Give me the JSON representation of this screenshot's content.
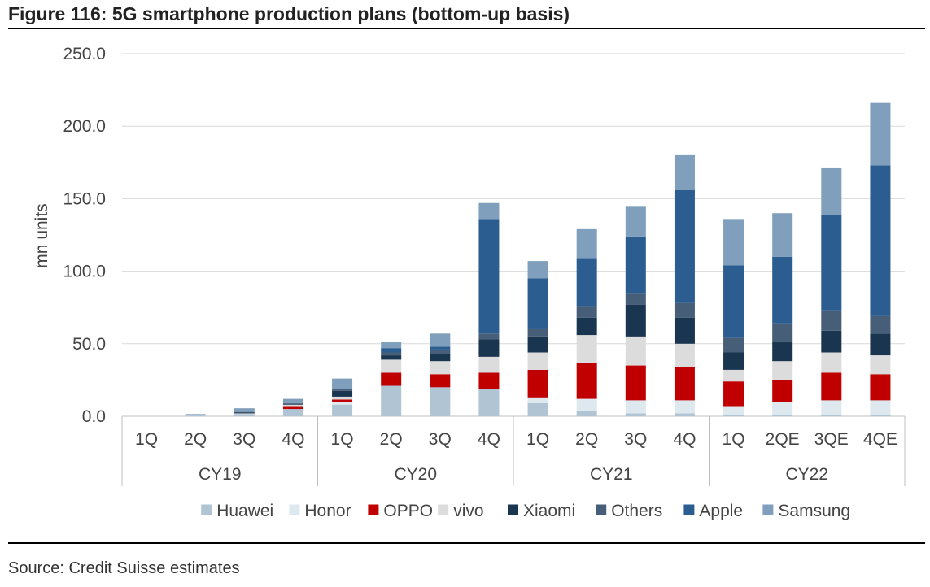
{
  "title": "Figure 116: 5G smartphone production plans (bottom-up basis)",
  "source": "Source: Credit Suisse estimates",
  "chart_data": {
    "type": "bar",
    "stacked": true,
    "ylabel": "mn units",
    "ylim": [
      0,
      250
    ],
    "yticks": [
      "0.0",
      "50.0",
      "100.0",
      "150.0",
      "200.0",
      "250.0"
    ],
    "grid": true,
    "legend_position": "bottom",
    "categories": [
      "1Q",
      "2Q",
      "3Q",
      "4Q",
      "1Q",
      "2Q",
      "3Q",
      "4Q",
      "1Q",
      "2Q",
      "3Q",
      "4Q",
      "1Q",
      "2QE",
      "3QE",
      "4QE"
    ],
    "groups": [
      {
        "label": "CY19",
        "count": 4
      },
      {
        "label": "CY20",
        "count": 4
      },
      {
        "label": "CY21",
        "count": 4
      },
      {
        "label": "CY22",
        "count": 4
      }
    ],
    "series": [
      {
        "name": "Huawei",
        "color": "#b1c4d4",
        "values": [
          0,
          0.5,
          1.5,
          5,
          8,
          21,
          20,
          19,
          9,
          4,
          2,
          2,
          1,
          1,
          1,
          1
        ]
      },
      {
        "name": "Honor",
        "color": "#dde8ef",
        "values": [
          0,
          0,
          0,
          0,
          2,
          0,
          0,
          0,
          4,
          8,
          9,
          9,
          6,
          9,
          10,
          10
        ]
      },
      {
        "name": "OPPO",
        "color": "#c00000",
        "values": [
          0,
          0,
          0,
          2,
          1.5,
          9,
          9,
          11,
          19,
          25,
          24,
          23,
          17,
          15,
          19,
          18
        ]
      },
      {
        "name": "vivo",
        "color": "#dcdcdc",
        "values": [
          0,
          0,
          0.5,
          1,
          2,
          9,
          9,
          11,
          12,
          19,
          20,
          16,
          8,
          13,
          14,
          13
        ]
      },
      {
        "name": "Xiaomi",
        "color": "#1a3550",
        "values": [
          0,
          0,
          0.5,
          0.5,
          4,
          3,
          5,
          12,
          11,
          12,
          22,
          18,
          12,
          13,
          15,
          15
        ]
      },
      {
        "name": "Others",
        "color": "#465e77",
        "values": [
          0,
          0,
          0.5,
          0.5,
          1.5,
          2,
          3,
          4,
          5,
          8,
          8,
          10,
          10,
          13,
          14,
          12
        ]
      },
      {
        "name": "Apple",
        "color": "#2b5d90",
        "values": [
          0,
          0,
          0,
          0,
          0,
          3,
          2,
          79,
          35,
          33,
          39,
          78,
          50,
          46,
          66,
          104
        ]
      },
      {
        "name": "Samsung",
        "color": "#7f9fbc",
        "values": [
          0,
          1,
          2.5,
          3,
          7,
          4,
          9,
          11,
          12,
          20,
          21,
          24,
          32,
          30,
          32,
          43
        ]
      }
    ]
  }
}
